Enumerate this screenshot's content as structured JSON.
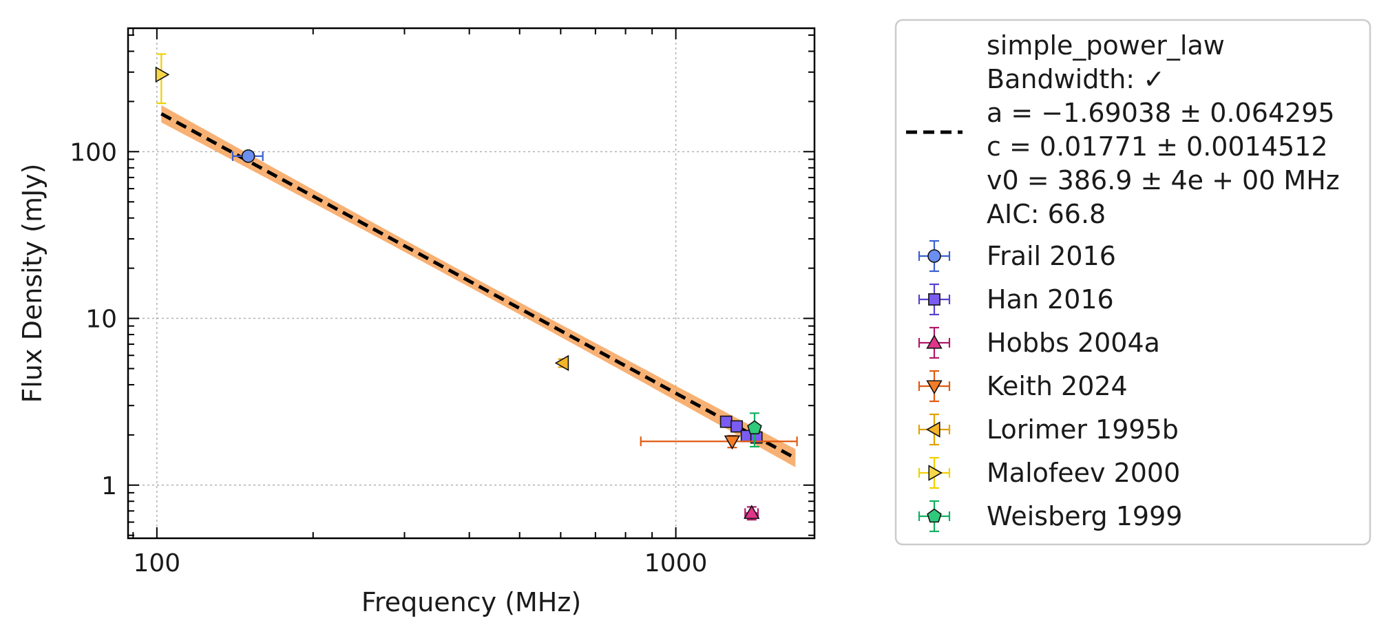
{
  "chart_data": {
    "type": "scatter",
    "xlabel": "Frequency (MHz)",
    "ylabel": "Flux Density (mJy)",
    "x_scale": "log",
    "y_scale": "log",
    "xlim": [
      88,
      1850
    ],
    "ylim": [
      0.48,
      550
    ],
    "x_ticks": [
      {
        "value": 100,
        "label": "100"
      },
      {
        "value": 1000,
        "label": "1000"
      }
    ],
    "y_ticks": [
      {
        "value": 1,
        "label": "1"
      },
      {
        "value": 10,
        "label": "10"
      },
      {
        "value": 100,
        "label": "100"
      }
    ],
    "grid": true,
    "legend_position": "outside-right",
    "fit": {
      "label_lines": [
        "simple_power_law",
        "Bandwidth: ✓",
        "a = −1.69038 ± 0.064295",
        "c = 0.01771 ± 0.0014512",
        "v0 = 386.9 ± 4e + 00 MHz",
        "AIC: 66.8"
      ],
      "model": "simple_power_law",
      "a": -1.69038,
      "a_err": 0.064295,
      "c": 0.01771,
      "c_err": 0.0014512,
      "v0": 386.9,
      "x_range": [
        102,
        1700
      ],
      "color": "#000000",
      "band_color": "#f7a35c"
    },
    "series": [
      {
        "name": "Frail 2016",
        "marker": "circle",
        "color": "#6b8ff0",
        "edge": "#3a5fcf",
        "points": [
          {
            "x": 150,
            "y": 94,
            "xerr": [
              10,
              10
            ],
            "yerr": [
              5,
              5
            ]
          }
        ]
      },
      {
        "name": "Han 2016",
        "marker": "square",
        "color": "#7a5cf0",
        "edge": "#5a3ed0",
        "points": [
          {
            "x": 1250,
            "y": 2.4,
            "xerr": [
              0,
              0
            ],
            "yerr": [
              0.12,
              0.12
            ]
          },
          {
            "x": 1310,
            "y": 2.25,
            "xerr": [
              0,
              0
            ],
            "yerr": [
              0.12,
              0.12
            ]
          },
          {
            "x": 1370,
            "y": 1.97,
            "xerr": [
              0,
              0
            ],
            "yerr": [
              0.1,
              0.1
            ]
          },
          {
            "x": 1430,
            "y": 1.93,
            "xerr": [
              0,
              0
            ],
            "yerr": [
              0.1,
              0.1
            ]
          }
        ]
      },
      {
        "name": "Hobbs 2004a",
        "marker": "triangle-up",
        "color": "#e0358a",
        "edge": "#b01868",
        "points": [
          {
            "x": 1400,
            "y": 0.68,
            "xerr": [
              40,
              40
            ],
            "yerr": [
              0.06,
              0.06
            ]
          }
        ]
      },
      {
        "name": "Keith 2024",
        "marker": "triangle-down",
        "color": "#f57c26",
        "edge": "#e05a10",
        "points": [
          {
            "x": 1284,
            "y": 1.83,
            "xerr": [
              428,
              428
            ],
            "yerr": [
              0.15,
              0.15
            ]
          }
        ]
      },
      {
        "name": "Lorimer 1995b",
        "marker": "triangle-left",
        "color": "#f5b52a",
        "edge": "#e0a000",
        "points": [
          {
            "x": 606,
            "y": 5.4,
            "xerr": [
              0,
              0
            ],
            "yerr": [
              0.3,
              0.3
            ]
          }
        ]
      },
      {
        "name": "Malofeev 2000",
        "marker": "triangle-right",
        "color": "#f7d84a",
        "edge": "#f0d000",
        "points": [
          {
            "x": 102,
            "y": 290,
            "xerr": [
              0,
              0
            ],
            "yerr": [
              95,
              95
            ]
          }
        ]
      },
      {
        "name": "Weisberg 1999",
        "marker": "pentagon",
        "color": "#2ec97a",
        "edge": "#10b060",
        "points": [
          {
            "x": 1418,
            "y": 2.2,
            "xerr": [
              0,
              0
            ],
            "yerr": [
              0.5,
              0.5
            ]
          }
        ]
      }
    ]
  }
}
